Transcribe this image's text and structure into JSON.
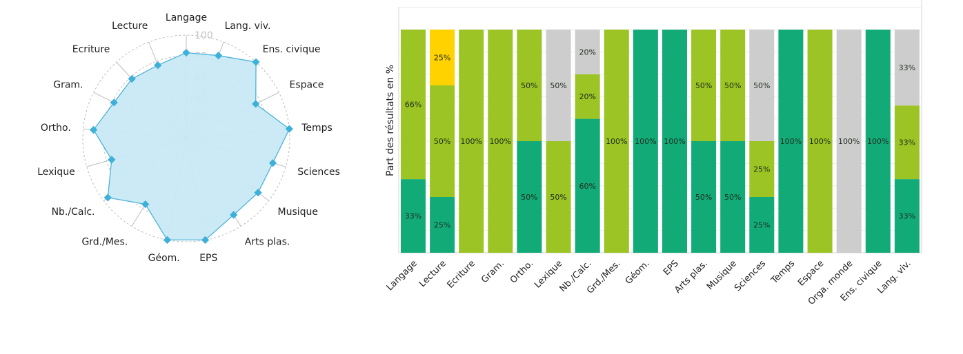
{
  "chart_data": [
    {
      "type": "radar",
      "axes": [
        "Langage",
        "Lang. viv.",
        "Ens. civique",
        "Espace",
        "Temps",
        "Sciences",
        "Musique",
        "Arts plas.",
        "EPS",
        "Géom.",
        "Grd./Mes.",
        "Nb./Calc.",
        "Lexique",
        "Ortho.",
        "Gram.",
        "Ecriture",
        "Lecture"
      ],
      "values": [
        83,
        86,
        100,
        75,
        100,
        87,
        87,
        87,
        100,
        100,
        75,
        95,
        75,
        90,
        78,
        78,
        76
      ],
      "ring_ticks": [
        "20",
        "40",
        "60",
        "80",
        "100"
      ],
      "range": [
        0,
        100
      ],
      "colors": {
        "fill": "#c8e9f4",
        "line": "#4db3da",
        "marker": "#3fb0d8",
        "grid": "#bdbdbd"
      }
    },
    {
      "type": "bar",
      "stacked": true,
      "ylabel": "Part des résultats en %",
      "ylim": [
        0,
        110
      ],
      "categories": [
        "Langage",
        "Lecture",
        "Ecriture",
        "Gram.",
        "Ortho.",
        "Lexique",
        "Nb./Calc.",
        "Grd./Mes.",
        "Géom.",
        "EPS",
        "Arts plas.",
        "Musique",
        "Sciences",
        "Temps",
        "Espace",
        "Orga. monde",
        "Ens. civique",
        "Lang. viv."
      ],
      "series": [
        {
          "name": "green",
          "color": "#12ab78",
          "values": [
            33,
            25,
            0,
            0,
            50,
            0,
            60,
            0,
            100,
            100,
            50,
            50,
            25,
            100,
            0,
            0,
            100,
            33
          ],
          "labels": [
            "33%",
            "25%",
            "",
            "",
            "50%",
            "",
            "60%",
            "",
            "100%",
            "100%",
            "50%",
            "50%",
            "25%",
            "100%",
            "",
            "",
            "100%",
            "33%"
          ]
        },
        {
          "name": "lime",
          "color": "#9bc424",
          "values": [
            66,
            50,
            100,
            100,
            50,
            50,
            20,
            100,
            0,
            0,
            50,
            50,
            25,
            0,
            100,
            0,
            0,
            33
          ],
          "labels": [
            "66%",
            "50%",
            "100%",
            "100%",
            "50%",
            "50%",
            "20%",
            "100%",
            "",
            "",
            "50%",
            "50%",
            "25%",
            "",
            "100%",
            "",
            "",
            "33%"
          ]
        },
        {
          "name": "yellow",
          "color": "#ffd200",
          "values": [
            0,
            25,
            0,
            0,
            0,
            0,
            0,
            0,
            0,
            0,
            0,
            0,
            0,
            0,
            0,
            0,
            0,
            0
          ],
          "labels": [
            "",
            "25%",
            "",
            "",
            "",
            "",
            "",
            "",
            "",
            "",
            "",
            "",
            "",
            "",
            "",
            "",
            "",
            ""
          ]
        },
        {
          "name": "gray",
          "color": "#cdcdcd",
          "values": [
            0,
            0,
            0,
            0,
            0,
            50,
            20,
            0,
            0,
            0,
            0,
            0,
            50,
            0,
            0,
            100,
            0,
            33
          ],
          "labels": [
            "",
            "",
            "",
            "",
            "",
            "50%",
            "20%",
            "",
            "",
            "",
            "",
            "",
            "50%",
            "",
            "",
            "100%",
            "",
            "33%"
          ]
        }
      ],
      "grid": true
    }
  ]
}
